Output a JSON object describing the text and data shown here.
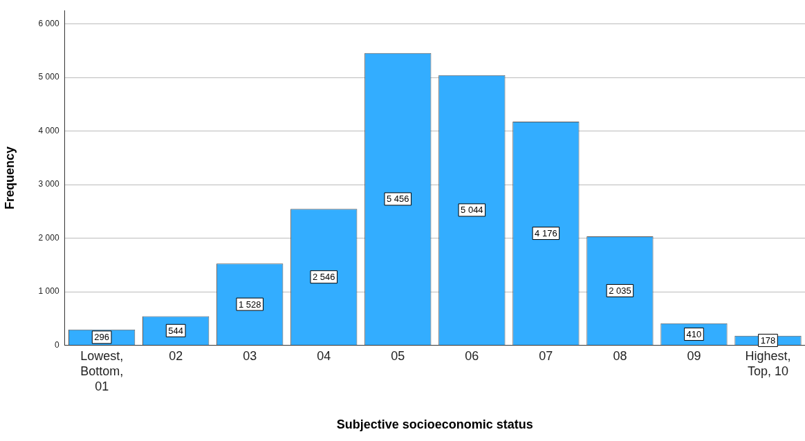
{
  "chart_data": {
    "type": "bar",
    "xlabel": "Subjective socioeconomic status",
    "ylabel": "Frequency",
    "categories": [
      "Lowest,\nBottom,\n01",
      "02",
      "03",
      "04",
      "05",
      "06",
      "07",
      "08",
      "09",
      "Highest,\nTop, 10"
    ],
    "values": [
      296,
      544,
      1528,
      2546,
      5456,
      5044,
      4176,
      2035,
      410,
      178
    ],
    "value_labels": [
      "296",
      "544",
      "1 528",
      "2 546",
      "5 456",
      "5 044",
      "4 176",
      "2 035",
      "410",
      "178"
    ],
    "color": "#33adff",
    "ylim": [
      0,
      6250
    ],
    "yticks": [
      {
        "value": 0,
        "label": "0"
      },
      {
        "value": 1000,
        "label": "1 000"
      },
      {
        "value": 2000,
        "label": "2 000"
      },
      {
        "value": 3000,
        "label": "3 000"
      },
      {
        "value": 4000,
        "label": "4 000"
      },
      {
        "value": 5000,
        "label": "5 000"
      },
      {
        "value": 6000,
        "label": "6 000"
      }
    ],
    "grid": "y",
    "legend": false
  }
}
